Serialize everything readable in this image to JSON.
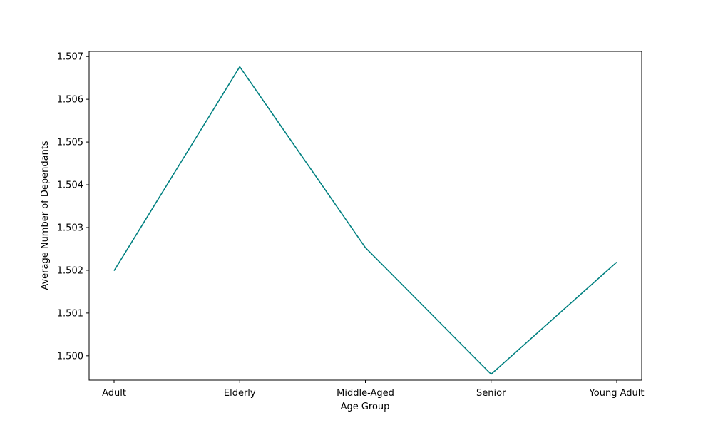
{
  "chart_data": {
    "type": "line",
    "title": "",
    "xlabel": "Age Group",
    "ylabel": "Average Number of Dependants",
    "categories": [
      "Adult",
      "Elderly",
      "Middle-Aged",
      "Senior",
      "Young Adult"
    ],
    "series": [
      {
        "values": [
          1.50199,
          1.50676,
          1.50253,
          1.49957,
          1.50219
        ],
        "color": "#008080"
      }
    ],
    "yticks": [
      1.5,
      1.501,
      1.502,
      1.503,
      1.504,
      1.505,
      1.506,
      1.507
    ],
    "ytick_labels": [
      "1.500",
      "1.501",
      "1.502",
      "1.503",
      "1.504",
      "1.505",
      "1.506",
      "1.507"
    ],
    "ylim": [
      1.49943,
      1.50712
    ],
    "grid": false,
    "legend": "none"
  }
}
